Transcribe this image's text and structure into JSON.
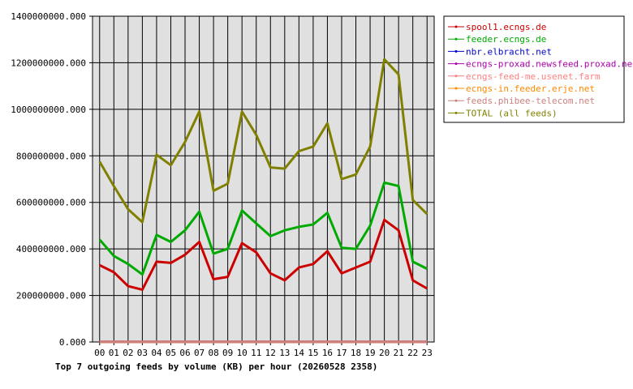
{
  "chart_data": {
    "type": "line",
    "title": "Top 7 outgoing feeds by volume (KB) per hour (20260528 2358)",
    "xlabel": "",
    "ylabel": "",
    "categories": [
      "00",
      "01",
      "02",
      "03",
      "04",
      "05",
      "06",
      "07",
      "08",
      "09",
      "10",
      "11",
      "12",
      "13",
      "14",
      "15",
      "16",
      "17",
      "18",
      "19",
      "20",
      "21",
      "22",
      "23"
    ],
    "ylim": [
      0,
      1400000000
    ],
    "yticks": [
      {
        "value": 0,
        "label": "0.000"
      },
      {
        "value": 200000000,
        "label": "200000000.000"
      },
      {
        "value": 400000000,
        "label": "400000000.000"
      },
      {
        "value": 600000000,
        "label": "600000000.000"
      },
      {
        "value": 800000000,
        "label": "800000000.000"
      },
      {
        "value": 1000000000,
        "label": "1000000000.000"
      },
      {
        "value": 1200000000,
        "label": "1200000000.000"
      },
      {
        "value": 1400000000,
        "label": "1400000000.000"
      }
    ],
    "grid": true,
    "legend_position": "right",
    "plot_background": "#e0e0e0",
    "series": [
      {
        "name": "spool1.ecngs.de",
        "color": "#cc0000",
        "values": [
          330000000,
          300000000,
          240000000,
          225000000,
          345000000,
          340000000,
          375000000,
          430000000,
          270000000,
          280000000,
          425000000,
          385000000,
          295000000,
          265000000,
          320000000,
          335000000,
          390000000,
          295000000,
          320000000,
          345000000,
          525000000,
          480000000,
          265000000,
          230000000
        ]
      },
      {
        "name": "feeder.ecngs.de",
        "color": "#00aa00",
        "values": [
          440000000,
          370000000,
          335000000,
          290000000,
          460000000,
          430000000,
          480000000,
          560000000,
          380000000,
          400000000,
          565000000,
          510000000,
          455000000,
          480000000,
          495000000,
          505000000,
          555000000,
          405000000,
          400000000,
          500000000,
          685000000,
          670000000,
          345000000,
          315000000
        ]
      },
      {
        "name": "nbr.elbracht.net",
        "color": "#0000cc",
        "values": [
          500000,
          500000,
          500000,
          500000,
          500000,
          500000,
          500000,
          500000,
          500000,
          500000,
          500000,
          500000,
          500000,
          500000,
          500000,
          500000,
          500000,
          500000,
          500000,
          500000,
          500000,
          500000,
          500000,
          500000
        ]
      },
      {
        "name": "ecngs-proxad.newsfeed.proxad.net",
        "color": "#aa00aa",
        "values": [
          500000,
          500000,
          500000,
          500000,
          500000,
          500000,
          500000,
          500000,
          500000,
          500000,
          500000,
          500000,
          500000,
          500000,
          500000,
          500000,
          500000,
          500000,
          500000,
          500000,
          500000,
          500000,
          500000,
          500000
        ]
      },
      {
        "name": "ecngs-feed-me.usenet.farm",
        "color": "#ff7f7f",
        "values": [
          500000,
          500000,
          500000,
          500000,
          500000,
          500000,
          500000,
          500000,
          500000,
          500000,
          500000,
          500000,
          500000,
          500000,
          500000,
          500000,
          500000,
          500000,
          500000,
          500000,
          500000,
          500000,
          500000,
          500000
        ]
      },
      {
        "name": "ecngs-in.feeder.erje.net",
        "color": "#ff8800",
        "values": [
          500000,
          500000,
          500000,
          500000,
          500000,
          500000,
          500000,
          500000,
          500000,
          500000,
          500000,
          500000,
          500000,
          500000,
          500000,
          500000,
          500000,
          500000,
          500000,
          500000,
          500000,
          500000,
          500000,
          500000
        ]
      },
      {
        "name": "feeds.phibee-telecom.net",
        "color": "#cc7f7f",
        "values": [
          500000,
          500000,
          500000,
          500000,
          500000,
          500000,
          500000,
          500000,
          500000,
          500000,
          500000,
          500000,
          500000,
          500000,
          500000,
          500000,
          500000,
          500000,
          500000,
          500000,
          500000,
          500000,
          500000,
          500000
        ]
      },
      {
        "name": "TOTAL (all feeds)",
        "color": "#808000",
        "values": [
          775000000,
          670000000,
          570000000,
          515000000,
          805000000,
          760000000,
          860000000,
          990000000,
          650000000,
          680000000,
          990000000,
          890000000,
          750000000,
          745000000,
          820000000,
          840000000,
          940000000,
          700000000,
          720000000,
          840000000,
          1215000000,
          1150000000,
          610000000,
          550000000
        ]
      }
    ]
  }
}
